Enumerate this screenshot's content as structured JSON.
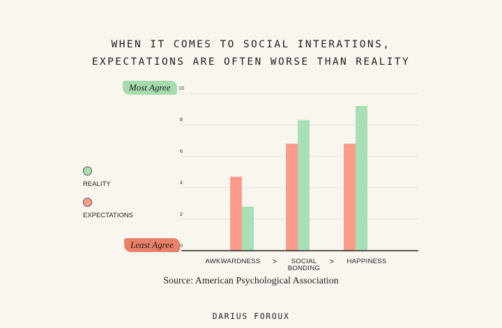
{
  "colors": {
    "reality": "#a9dfb5",
    "expectations": "#fb9c8a",
    "axis": "#222222",
    "grid": "#e7e3dc",
    "most_agree_badge": "#a6dbae",
    "least_agree_badge": "#e98069"
  },
  "scale_labels": {
    "top": "Most Agree",
    "bottom": "Least Agree"
  },
  "legend": [
    {
      "label": "REALITY",
      "color": "#a9dfb5"
    },
    {
      "label": "EXPECTATIONS",
      "color": "#fb9c8a"
    }
  ],
  "source": "Source: American Psychological Association",
  "author": "DARIUS FOROUX",
  "chart_data": {
    "type": "bar",
    "title": "WHEN IT COMES TO SOCIAL INTERATIONS, EXPECTATIONS ARE OFTEN WORSE THAN REALITY",
    "title_lines": [
      "WHEN IT COMES TO SOCIAL INTERATIONS,",
      "EXPECTATIONS ARE OFTEN WORSE THAN REALITY"
    ],
    "categories": [
      "AWKWARDNESS",
      "SOCIAL BONDING",
      "HAPPINESS"
    ],
    "category_lines": [
      [
        "AWKWARDNESS"
      ],
      [
        "SOCIAL",
        "BONDING"
      ],
      [
        "HAPPINESS"
      ]
    ],
    "separator": ">",
    "series": [
      {
        "name": "EXPECTATIONS",
        "values": [
          4.7,
          6.8,
          6.8
        ]
      },
      {
        "name": "REALITY",
        "values": [
          2.8,
          8.3,
          9.2
        ]
      }
    ],
    "yticks": [
      0,
      2,
      4,
      6,
      8,
      10
    ],
    "ylim": [
      0,
      10
    ],
    "xlabel": "",
    "ylabel": "",
    "grid": true,
    "legend_position": "left"
  }
}
